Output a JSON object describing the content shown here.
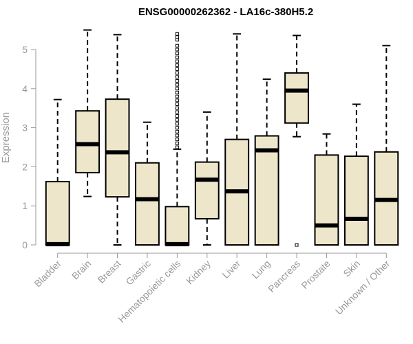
{
  "chart_data": {
    "type": "box",
    "title": "ENSG00000262362 - LA16c-380H5.2",
    "xlabel": "",
    "ylabel": "Expression",
    "ylim": [
      0,
      5.5
    ],
    "yticks": [
      "0",
      "1",
      "2",
      "3",
      "4",
      "5"
    ],
    "box_fill": "#EDE6CA",
    "box_stroke": "#000000",
    "categories": [
      "Bladder",
      "Brain",
      "Breast",
      "Gastric",
      "Hematopoietic cells",
      "Kidney",
      "Liver",
      "Lung",
      "Pancreas",
      "Prostate",
      "Skin",
      "Unknown / Other"
    ],
    "boxes": [
      {
        "min": 0,
        "q1": 0,
        "median": 0.02,
        "q3": 1.62,
        "max": 3.72,
        "outliers": []
      },
      {
        "min": 1.24,
        "q1": 1.85,
        "median": 2.58,
        "q3": 3.43,
        "max": 5.5,
        "outliers": []
      },
      {
        "min": 0,
        "q1": 1.23,
        "median": 2.37,
        "q3": 3.73,
        "max": 5.38,
        "outliers": []
      },
      {
        "min": 0,
        "q1": 0,
        "median": 1.17,
        "q3": 2.1,
        "max": 3.14,
        "outliers": []
      },
      {
        "min": 0,
        "q1": 0,
        "median": 0.02,
        "q3": 0.98,
        "max": 2.45,
        "outliers": [
          2.5,
          2.6,
          2.7,
          2.8,
          2.9,
          3.0,
          3.1,
          3.2,
          3.3,
          3.4,
          3.5,
          3.6,
          3.7,
          3.8,
          3.9,
          4.0,
          4.1,
          4.2,
          4.3,
          4.4,
          4.5,
          4.6,
          4.7,
          4.8,
          4.9,
          5.0,
          5.1,
          5.25,
          5.32,
          5.4
        ]
      },
      {
        "min": 0,
        "q1": 0.67,
        "median": 1.67,
        "q3": 2.12,
        "max": 3.4,
        "outliers": []
      },
      {
        "min": 0,
        "q1": 0,
        "median": 1.37,
        "q3": 2.7,
        "max": 5.4,
        "outliers": []
      },
      {
        "min": 0,
        "q1": 0,
        "median": 2.42,
        "q3": 2.79,
        "max": 4.24,
        "outliers": []
      },
      {
        "min": 2.77,
        "q1": 3.12,
        "median": 3.95,
        "q3": 4.4,
        "max": 5.36,
        "outliers": [
          0.0
        ]
      },
      {
        "min": 0,
        "q1": 0,
        "median": 0.5,
        "q3": 2.3,
        "max": 2.84,
        "outliers": []
      },
      {
        "min": 0,
        "q1": 0,
        "median": 0.67,
        "q3": 2.27,
        "max": 3.6,
        "outliers": []
      },
      {
        "min": 0,
        "q1": 0,
        "median": 1.15,
        "q3": 2.38,
        "max": 5.1,
        "outliers": []
      }
    ]
  }
}
